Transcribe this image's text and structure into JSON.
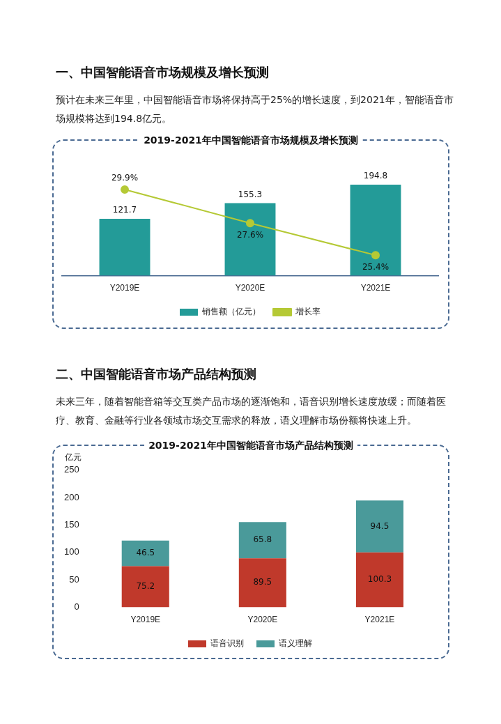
{
  "chart_data": [
    {
      "type": "bar",
      "title": "2019-2021年中国智能语音市场规模及增长预测",
      "annotations": [
        "一、中国智能语音市场规模及增长预测",
        "预计在未来三年里，中国智能语音市场将保持高于25%的增长速度，到2021年，智能语音市场规模将达到194.8亿元。"
      ],
      "categories": [
        "Y2019E",
        "Y2020E",
        "Y2021E"
      ],
      "series": [
        {
          "name": "销售额（亿元）",
          "color": "#239b98",
          "values": [
            121.7,
            155.3,
            194.8
          ]
        },
        {
          "name": "增长率",
          "type": "line",
          "axis": "y2",
          "color": "#b5c935",
          "values": [
            29.9,
            27.6,
            25.4
          ],
          "value_labels": [
            "29.9%",
            "27.6%",
            "25.4%"
          ]
        }
      ],
      "data_labels": true,
      "legend": "bottom",
      "grid": false,
      "tick_labels": "x",
      "marker": "circle"
    },
    {
      "type": "bar",
      "title": "2019-2021年中国智能语音市场产品结构预测",
      "annotations": [
        "二、中国智能语音市场产品结构预测",
        "未来三年，随着智能音箱等交互类产品市场的逐渐饱和，语音识别增长速度放缓；而随着医疗、教育、金融等行业各领域市场交互需求的释放，语义理解市场份额将快速上升。"
      ],
      "ylabel": "亿元",
      "categories": [
        "Y2019E",
        "Y2020E",
        "Y2021E"
      ],
      "series": [
        {
          "name": "语音识别",
          "color": "#c0392b",
          "values": [
            75.2,
            89.5,
            100.3
          ]
        },
        {
          "name": "语义理解",
          "color": "#4a9a9a",
          "values": [
            46.5,
            65.8,
            94.5
          ]
        }
      ],
      "stacked": true,
      "ylim": [
        0,
        250
      ],
      "yticks": [
        0,
        50,
        100,
        150,
        200,
        250
      ],
      "data_labels": true,
      "legend": "bottom",
      "grid": false
    }
  ]
}
